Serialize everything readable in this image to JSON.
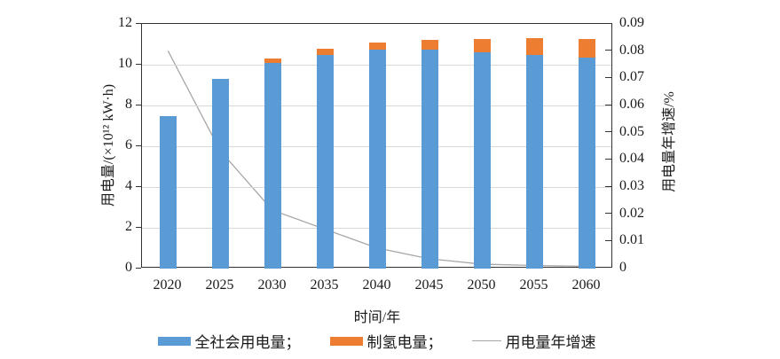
{
  "chart_data": {
    "type": "bar",
    "categories": [
      "2020",
      "2025",
      "2030",
      "2035",
      "2040",
      "2045",
      "2050",
      "2055",
      "2060"
    ],
    "series": [
      {
        "name": "全社会用电量",
        "type": "bar",
        "axis": "left",
        "stack": true,
        "color": "#5b9bd5",
        "values": [
          7.5,
          9.3,
          10.1,
          10.5,
          10.75,
          10.75,
          10.6,
          10.5,
          10.35
        ]
      },
      {
        "name": "制氢电量",
        "type": "bar",
        "axis": "left",
        "stack": true,
        "color": "#ed7d31",
        "values": [
          0,
          0,
          0.2,
          0.3,
          0.35,
          0.45,
          0.65,
          0.8,
          0.9
        ]
      },
      {
        "name": "用电量年增速",
        "type": "line",
        "axis": "right",
        "color": "#a6a6a6",
        "values": [
          0.08,
          0.043,
          0.021,
          0.014,
          0.007,
          0.003,
          0.001,
          0.0005,
          0.0002
        ]
      }
    ],
    "left_axis": {
      "title": "用电量/(×10¹² kW·h)",
      "min": 0,
      "max": 12,
      "step": 2,
      "tick_labels": [
        "0",
        "2",
        "4",
        "6",
        "8",
        "10",
        "12"
      ]
    },
    "right_axis": {
      "title": "用电量年增速/%",
      "min": 0,
      "max": 0.09,
      "step": 0.01,
      "tick_labels": [
        "0",
        "0.01",
        "0.02",
        "0.03",
        "0.04",
        "0.05",
        "0.06",
        "0.07",
        "0.08",
        "0.09"
      ]
    },
    "xlabel": "时间/年",
    "grid": true,
    "legend_position": "bottom",
    "colors": {
      "gridline": "#d9d9d9",
      "axis": "#333333",
      "text": "#1a1a1a"
    }
  },
  "legend": {
    "items": [
      {
        "label": "全社会用电量；"
      },
      {
        "label": "制氢电量；"
      },
      {
        "label": "用电量年增速"
      }
    ]
  }
}
